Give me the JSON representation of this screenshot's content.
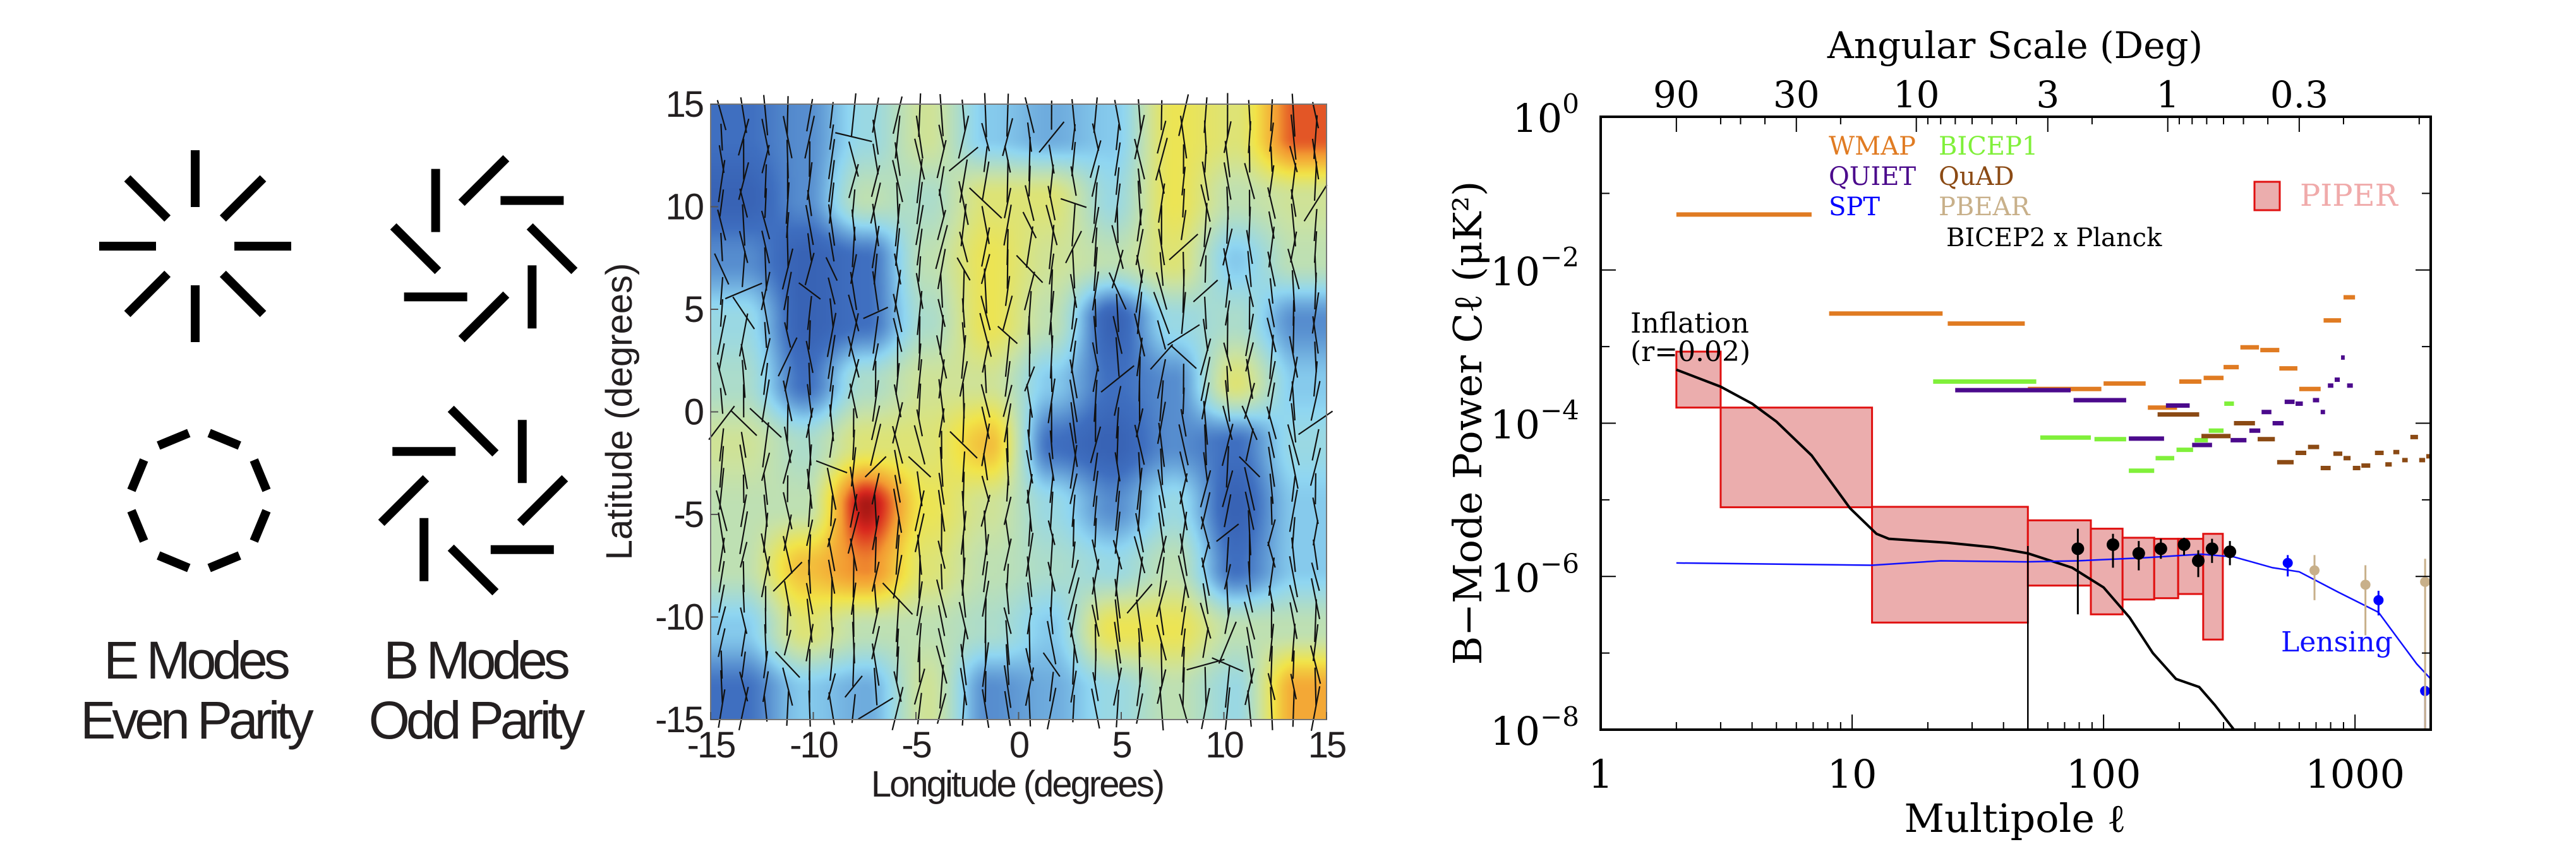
{
  "figure": {
    "e_modes": {
      "title": "E Modes",
      "subtitle": "Even Parity"
    },
    "b_modes": {
      "title": "B Modes",
      "subtitle": "Odd Parity"
    }
  },
  "chart_data": [
    {
      "type": "heatmap",
      "xlabel": "Longitude (degrees)",
      "ylabel": "Latitude (degrees)",
      "xlim": [
        -15,
        15
      ],
      "ylim": [
        -15,
        15
      ],
      "x_ticks": [
        "-15",
        "-10",
        "-5",
        "0",
        "5",
        "10",
        "15"
      ],
      "y_ticks": [
        "15",
        "10",
        "5",
        "0",
        "-5",
        "-10",
        "-15"
      ],
      "x": [
        -13.5,
        -10.5,
        -7.5,
        -4.5,
        -1.5,
        1.5,
        4.5,
        7.5,
        10.5,
        13.5
      ],
      "y": [
        13.5,
        10.5,
        7.5,
        4.5,
        1.5,
        -1.5,
        -4.5,
        -7.5,
        -10.5,
        -13.5
      ],
      "values": [
        [
          0.15,
          0.2,
          0.35,
          0.5,
          0.3,
          0.25,
          0.3,
          0.6,
          0.55,
          0.85
        ],
        [
          0.1,
          0.2,
          0.45,
          0.4,
          0.55,
          0.55,
          0.35,
          0.6,
          0.45,
          0.5
        ],
        [
          0.2,
          0.1,
          0.15,
          0.45,
          0.6,
          0.5,
          0.45,
          0.55,
          0.3,
          0.45
        ],
        [
          0.35,
          0.1,
          0.15,
          0.4,
          0.6,
          0.45,
          0.1,
          0.35,
          0.4,
          0.2
        ],
        [
          0.4,
          0.15,
          0.4,
          0.5,
          0.5,
          0.3,
          0.15,
          0.2,
          0.55,
          0.3
        ],
        [
          0.5,
          0.4,
          0.55,
          0.55,
          0.7,
          0.15,
          0.1,
          0.2,
          0.15,
          0.35
        ],
        [
          0.45,
          0.45,
          0.95,
          0.6,
          0.5,
          0.35,
          0.2,
          0.35,
          0.1,
          0.3
        ],
        [
          0.45,
          0.7,
          0.8,
          0.55,
          0.45,
          0.4,
          0.35,
          0.45,
          0.15,
          0.3
        ],
        [
          0.3,
          0.55,
          0.45,
          0.45,
          0.4,
          0.3,
          0.6,
          0.6,
          0.45,
          0.45
        ],
        [
          0.15,
          0.3,
          0.25,
          0.5,
          0.2,
          0.25,
          0.35,
          0.45,
          0.35,
          0.75
        ]
      ],
      "colormap": [
        "#2a4a9e",
        "#3f6fc0",
        "#8fd6f2",
        "#c9e2a4",
        "#f2e447",
        "#f39a32",
        "#d8261e",
        "#7a0c0c"
      ]
    },
    {
      "type": "line",
      "xscale": "log",
      "yscale": "log",
      "xlim": [
        1,
        2000
      ],
      "ylim": [
        1e-08,
        1
      ],
      "xlabel": "Multipole ℓ",
      "ylabel": "B−Mode Power Cℓ (μK²)",
      "x_ticks": [
        {
          "label": "1",
          "value": 1
        },
        {
          "label": "10",
          "value": 10
        },
        {
          "label": "100",
          "value": 100
        },
        {
          "label": "1000",
          "value": 1000
        }
      ],
      "y_ticks": [
        {
          "base": "10",
          "exp": "0",
          "value": 1
        },
        {
          "base": "10",
          "exp": "−2",
          "value": 0.01
        },
        {
          "base": "10",
          "exp": "−4",
          "value": 0.0001
        },
        {
          "base": "10",
          "exp": "−6",
          "value": 1e-06
        },
        {
          "base": "10",
          "exp": "−8",
          "value": 1e-08
        }
      ],
      "top_axis": {
        "label": "Angular Scale (Deg)",
        "ticks": [
          {
            "label": "90",
            "l": 2
          },
          {
            "label": "30",
            "l": 6
          },
          {
            "label": "10",
            "l": 18
          },
          {
            "label": "3",
            "l": 60
          },
          {
            "label": "1",
            "l": 180
          },
          {
            "label": "0.3",
            "l": 600
          }
        ]
      },
      "legend": {
        "placement": "top",
        "piper_label": "PIPER"
      },
      "series": {
        "wmap": {
          "name": "WMAP",
          "color": "#e07b22",
          "segments": [
            [
              2,
              6.9,
              0.053
            ],
            [
              8.1,
              22.9,
              0.0027
            ],
            [
              24,
              48.6,
              0.002
            ],
            [
              50,
              98,
              0.00028
            ],
            [
              100,
              147,
              0.00033
            ],
            [
              150,
              196,
              0.00016
            ],
            [
              200,
              245,
              0.00035
            ],
            [
              250,
              300,
              0.00039
            ],
            [
              300,
              345,
              0.00054
            ],
            [
              350,
              415,
              0.00098
            ],
            [
              420,
              500,
              0.0009
            ],
            [
              500,
              590,
              0.00052
            ],
            [
              600,
              730,
              0.00028
            ],
            [
              750,
              880,
              0.0022
            ],
            [
              900,
              1000,
              0.0044
            ]
          ]
        },
        "bicep1": {
          "name": "BICEP1",
          "color": "#80f03a",
          "segments": [
            [
              21,
              54,
              0.00035
            ],
            [
              56,
              89,
              6.5e-05
            ],
            [
              92,
              123,
              6.2e-05
            ],
            [
              126,
              159,
              2.4e-05
            ],
            [
              161,
              191,
              3.5e-05
            ],
            [
              195,
              227,
              4.5e-05
            ],
            [
              230,
              260,
              6e-05
            ],
            [
              262,
              300,
              8e-05
            ],
            [
              302,
              330,
              0.00018
            ]
          ]
        },
        "quiet": {
          "name": "QUIET",
          "color": "#4b0a8c",
          "segments": [
            [
              25.7,
              74,
              0.00027
            ],
            [
              76,
              123,
              0.0002
            ],
            [
              126,
              174,
              6.3e-05
            ],
            [
              177,
              220,
              0.00017
            ],
            [
              225,
              270,
              5.2e-05
            ],
            [
              320,
              370,
              6e-05
            ],
            [
              380,
              420,
              8e-05
            ],
            [
              425,
              465,
              0.00014
            ],
            [
              470,
              520,
              0.0001
            ],
            [
              525,
              575,
              0.00019
            ],
            [
              580,
              620,
              0.00018
            ],
            [
              680,
              720,
              0.0002
            ],
            [
              730,
              760,
              0.00014
            ],
            [
              780,
              820,
              0.00031
            ],
            [
              830,
              870,
              0.00037
            ],
            [
              880,
              910,
              0.00072
            ],
            [
              930,
              980,
              0.00031
            ]
          ]
        },
        "quad": {
          "name": "QuAD",
          "color": "#8b4a14",
          "segments": [
            [
              164,
              240,
              0.00013
            ],
            [
              245,
              320,
              6.8e-05
            ],
            [
              330,
              400,
              0.0001
            ],
            [
              410,
              480,
              6.2e-05
            ],
            [
              490,
              570,
              3.1e-05
            ],
            [
              580,
              640,
              4.1e-05
            ],
            [
              650,
              720,
              4.9e-05
            ],
            [
              730,
              800,
              2.6e-05
            ],
            [
              820,
              890,
              4e-05
            ],
            [
              900,
              960,
              3.5e-05
            ],
            [
              980,
              1050,
              2.6e-05
            ],
            [
              1060,
              1150,
              2.8e-05
            ],
            [
              1200,
              1300,
              4.1e-05
            ],
            [
              1320,
              1400,
              2.9e-05
            ],
            [
              1420,
              1500,
              4.2e-05
            ],
            [
              1540,
              1620,
              3.3e-05
            ],
            [
              1660,
              1780,
              6.6e-05
            ],
            [
              1800,
              1900,
              3.3e-05
            ],
            [
              1920,
              2000,
              3.7e-05
            ]
          ]
        },
        "spt": {
          "name": "SPT",
          "color": "#0000ff",
          "points": [
            [
              540,
              1.5e-06,
              1e-06,
              1.9e-06
            ],
            [
              1240,
              4.9e-07,
              3.1e-07,
              6.5e-07
            ],
            [
              1900,
              3.2e-08,
              1e-08,
              3.8e-08
            ]
          ]
        },
        "pbear": {
          "name": "PBEAR",
          "color": "#c8b08a",
          "points": [
            [
              690,
              1.2e-06,
              4.9e-07,
              1.9e-06
            ],
            [
              1100,
              7.8e-07,
              1.7e-07,
              1.4e-06
            ],
            [
              1900,
              8.5e-07,
              1e-08,
              1.7e-06
            ]
          ]
        },
        "bicep2_planck": {
          "name": "BICEP2 x Planck",
          "color": "#000000",
          "points": [
            [
              79,
              2.3e-06,
              3.2e-07,
              4.2e-06
            ],
            [
              109,
              2.6e-06,
              1.3e-06,
              3.6e-06
            ],
            [
              138,
              2e-06,
              1.2e-06,
              2.9e-06
            ],
            [
              169,
              2.3e-06,
              1.7e-06,
              3.1e-06
            ],
            [
              209,
              2.6e-06,
              1.9e-06,
              3.2e-06
            ],
            [
              238,
              1.6e-06,
              9.8e-07,
              2.2e-06
            ],
            [
              270,
              2.3e-06,
              1.5e-06,
              3.1e-06
            ],
            [
              318,
              2.1e-06,
              1.4e-06,
              2.9e-06
            ]
          ]
        },
        "piper": {
          "name": "PIPER",
          "fill": "#ebadad",
          "stroke": "#e01010",
          "boxes": [
            [
              2,
              3,
              0.00016,
              0.00086
            ],
            [
              3,
              12,
              8e-06,
              0.00016
            ],
            [
              12,
              50,
              2.5e-07,
              8.1e-06
            ],
            [
              50,
              89,
              7.6e-07,
              5.4e-06
            ],
            [
              89,
              119,
              3.2e-07,
              4.2e-06
            ],
            [
              119,
              159,
              5e-07,
              3.2e-06
            ],
            [
              159,
              198,
              5.2e-07,
              3.1e-06
            ],
            [
              198,
              249,
              5.9e-07,
              3.1e-06
            ],
            [
              249,
              298,
              1.5e-07,
              3.6e-06
            ]
          ]
        },
        "inflation": {
          "name": "Inflation",
          "name_line2": "(r=0.02)",
          "color": "#000000",
          "curve": [
            [
              2,
              0.0005
            ],
            [
              3,
              0.0003
            ],
            [
              4,
              0.00018
            ],
            [
              5,
              0.000105
            ],
            [
              6.9,
              3.8e-05
            ],
            [
              9.8,
              7.8e-06
            ],
            [
              12.5,
              3.6e-06
            ],
            [
              14,
              3.1e-06
            ],
            [
              24,
              2.75e-06
            ],
            [
              36.4,
              2.4e-06
            ],
            [
              50,
              2e-06
            ],
            [
              75,
              1.3e-06
            ],
            [
              100,
              7.2e-07
            ],
            [
              127,
              2.9e-07
            ],
            [
              157,
              1e-07
            ],
            [
              194,
              4.6e-08
            ],
            [
              240,
              3.6e-08
            ],
            [
              277,
              2.1e-08
            ],
            [
              330,
              1e-08
            ]
          ],
          "vline": {
            "l": 50,
            "top": 2.5e-06
          }
        },
        "lensing": {
          "name": "Lensing",
          "color": "#1010ff",
          "curve": [
            [
              2,
              1.5e-06
            ],
            [
              12,
              1.4e-06
            ],
            [
              22.5,
              1.6e-06
            ],
            [
              49,
              1.55e-06
            ],
            [
              79,
              1.6e-06
            ],
            [
              144,
              1.75e-06
            ],
            [
              245,
              1.95e-06
            ],
            [
              330,
              1.8e-06
            ],
            [
              470,
              1.3e-06
            ],
            [
              600,
              1.15e-06
            ],
            [
              860,
              6.2e-07
            ],
            [
              1240,
              3.4e-07
            ],
            [
              1480,
              1.55e-07
            ],
            [
              1760,
              7.2e-08
            ],
            [
              2000,
              4.6e-08
            ]
          ]
        }
      }
    }
  ]
}
